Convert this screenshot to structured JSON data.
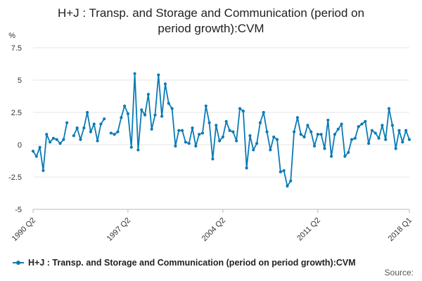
{
  "chart_data": {
    "type": "line",
    "title_lines": [
      "H+J : Transp. and Storage and Communication (period on",
      "period growth):CVM"
    ],
    "ylabel": "%",
    "ylim": [
      -5,
      7.5
    ],
    "yticks": [
      "7.5",
      "5",
      "2.5",
      "0",
      "-2.5",
      "-5"
    ],
    "ytick_values": [
      7.5,
      5,
      2.5,
      0,
      -2.5,
      -5
    ],
    "xtick_labels": [
      "1990 Q2",
      "1997 Q2",
      "2004 Q2",
      "2011 Q2",
      "2018 Q1"
    ],
    "xtick_index": [
      0,
      28,
      56,
      84,
      111
    ],
    "grid": true,
    "legend_position": "bottom-left",
    "series": [
      {
        "name": "H+J : Transp. and Storage and Communication (period on period growth):CVM",
        "color": "#0a7bb5",
        "values": [
          -0.5,
          -0.9,
          -0.2,
          -2.0,
          0.8,
          0.2,
          0.5,
          0.4,
          0.1,
          0.4,
          1.7,
          null,
          0.7,
          1.3,
          0.4,
          1.3,
          2.5,
          1.0,
          1.6,
          0.3,
          1.6,
          2.0,
          null,
          0.9,
          0.8,
          1.0,
          2.1,
          3.0,
          2.4,
          -0.2,
          5.5,
          -0.4,
          2.7,
          2.3,
          3.9,
          1.2,
          2.3,
          5.4,
          2.2,
          4.7,
          3.2,
          2.8,
          -0.1,
          1.1,
          1.1,
          0.2,
          0.1,
          1.3,
          -0.1,
          0.8,
          0.9,
          3.0,
          1.7,
          -1.1,
          1.5,
          0.3,
          0.6,
          1.8,
          1.1,
          1.0,
          0.3,
          2.8,
          2.6,
          -1.8,
          0.7,
          -0.4,
          0.1,
          1.7,
          2.5,
          1.0,
          -0.4,
          0.6,
          0.4,
          -2.1,
          -2.0,
          -3.2,
          -2.8,
          1.0,
          2.1,
          0.8,
          0.6,
          1.5,
          1.0,
          -0.1,
          0.8,
          0.8,
          -0.3,
          1.9,
          -0.9,
          0.8,
          1.2,
          1.6,
          -0.9,
          -0.6,
          0.4,
          0.5,
          1.4,
          1.6,
          1.8,
          0.1,
          1.1,
          0.9,
          0.5,
          1.5,
          0.4,
          2.8,
          1.5,
          -0.3,
          1.1,
          0.2,
          1.1,
          0.4
        ]
      }
    ]
  },
  "legend": {
    "label": "H+J : Transp. and Storage and Communication (period on period growth):CVM"
  },
  "footer": {
    "source_label": "Source:"
  }
}
